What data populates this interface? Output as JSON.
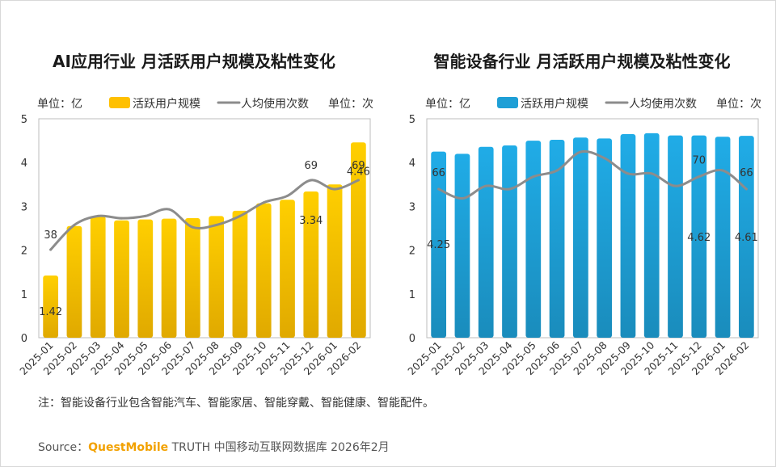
{
  "chart_data": [
    {
      "type": "bar",
      "title": "AI应用行业 月活跃用户规模及粘性变化",
      "y_unit_label": "单位：亿",
      "y2_unit_label": "单位：次",
      "legend": {
        "bar": "活跃用户规模",
        "line": "人均使用次数",
        "placement": "top"
      },
      "categories": [
        "2025-01",
        "2025-02",
        "2025-03",
        "2025-04",
        "2025-05",
        "2025-06",
        "2025-07",
        "2025-08",
        "2025-09",
        "2025-10",
        "2025-11",
        "2025-12",
        "2026-01",
        "2026-02"
      ],
      "ylim": [
        0,
        5
      ],
      "yticks": [
        "0",
        "1",
        "2",
        "3",
        "4",
        "5"
      ],
      "series": [
        {
          "name": "活跃用户规模",
          "type": "bar",
          "color": "#ffc000",
          "values": [
            1.42,
            2.55,
            2.78,
            2.68,
            2.7,
            2.72,
            2.73,
            2.78,
            2.9,
            3.07,
            3.15,
            3.34,
            3.5,
            4.46
          ]
        },
        {
          "name": "人均使用次数",
          "type": "line",
          "color": "#8c8c8c",
          "values": [
            38,
            49,
            53,
            52,
            53,
            56,
            48,
            49,
            53,
            59,
            62,
            69,
            65,
            69
          ]
        }
      ],
      "data_labels": {
        "bar": [
          {
            "index": 0,
            "text": "1.42"
          },
          {
            "index": 11,
            "text": "3.34"
          },
          {
            "index": 13,
            "text": "4.46"
          }
        ],
        "line": [
          {
            "index": 0,
            "text": "38"
          },
          {
            "index": 11,
            "text": "69"
          },
          {
            "index": 13,
            "text": "69"
          }
        ]
      }
    },
    {
      "type": "bar",
      "title": "智能设备行业 月活跃用户规模及粘性变化",
      "y_unit_label": "单位：亿",
      "y2_unit_label": "单位：次",
      "legend": {
        "bar": "活跃用户规模",
        "line": "人均使用次数",
        "placement": "top"
      },
      "categories": [
        "2025-01",
        "2025-02",
        "2025-03",
        "2025-04",
        "2025-05",
        "2025-06",
        "2025-07",
        "2025-08",
        "2025-09",
        "2025-10",
        "2025-11",
        "2025-12",
        "2026-01",
        "2026-02"
      ],
      "ylim": [
        0,
        5
      ],
      "yticks": [
        "0",
        "1",
        "2",
        "3",
        "4",
        "5"
      ],
      "series": [
        {
          "name": "活跃用户规模",
          "type": "bar",
          "color": "#1e9fd6",
          "values": [
            4.25,
            4.2,
            4.36,
            4.39,
            4.5,
            4.52,
            4.57,
            4.55,
            4.65,
            4.67,
            4.62,
            4.62,
            4.59,
            4.61
          ]
        },
        {
          "name": "人均使用次数",
          "type": "line",
          "color": "#8c8c8c",
          "values": [
            66,
            63,
            67,
            66,
            70,
            72,
            78,
            76,
            71,
            71,
            67,
            70,
            72,
            66
          ]
        }
      ],
      "data_labels": {
        "bar": [
          {
            "index": 0,
            "text": "4.25"
          },
          {
            "index": 11,
            "text": "4.62"
          },
          {
            "index": 13,
            "text": "4.61"
          }
        ],
        "line": [
          {
            "index": 0,
            "text": "66"
          },
          {
            "index": 11,
            "text": "70"
          },
          {
            "index": 13,
            "text": "66"
          }
        ]
      }
    }
  ],
  "footer": {
    "note": "注：智能设备行业包含智能汽车、智能家居、智能穿戴、智能健康、智能配件。",
    "source_prefix": "Source：",
    "source_brand": "QuestMobile",
    "source_suffix": " TRUTH 中国移动互联网数据库 2026年2月"
  }
}
